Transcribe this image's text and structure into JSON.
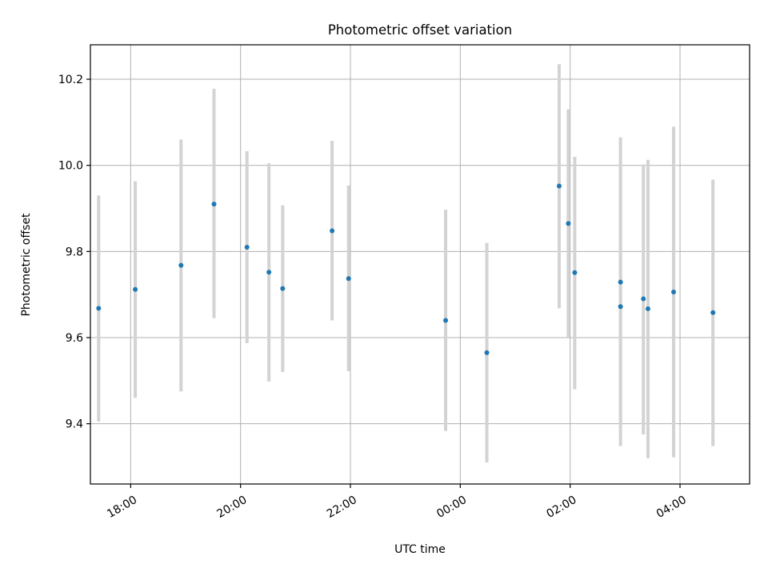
{
  "chart_data": {
    "type": "scatter",
    "title": "Photometric offset variation",
    "xlabel": "UTC time",
    "ylabel": "Photometric offset",
    "x_axis": {
      "kind": "time",
      "range": [
        "17:16",
        "05:16"
      ],
      "ticks": [
        "18:00",
        "20:00",
        "22:00",
        "00:00",
        "02:00",
        "04:00"
      ]
    },
    "y_axis": {
      "range": [
        9.26,
        10.28
      ],
      "ticks": [
        9.4,
        9.6,
        9.8,
        10.0,
        10.2
      ],
      "tick_labels": [
        "9.4",
        "9.6",
        "9.8",
        "10.0",
        "10.2"
      ]
    },
    "grid": true,
    "points": [
      {
        "time": "17:25",
        "y": 9.668,
        "lo": 9.405,
        "hi": 9.93
      },
      {
        "time": "18:05",
        "y": 9.712,
        "lo": 9.46,
        "hi": 9.963
      },
      {
        "time": "18:55",
        "y": 9.768,
        "lo": 9.475,
        "hi": 10.06
      },
      {
        "time": "19:31",
        "y": 9.91,
        "lo": 9.645,
        "hi": 10.178
      },
      {
        "time": "20:07",
        "y": 9.81,
        "lo": 9.587,
        "hi": 10.033
      },
      {
        "time": "20:31",
        "y": 9.752,
        "lo": 9.498,
        "hi": 10.005
      },
      {
        "time": "20:46",
        "y": 9.714,
        "lo": 9.52,
        "hi": 9.907
      },
      {
        "time": "21:40",
        "y": 9.848,
        "lo": 9.64,
        "hi": 10.057
      },
      {
        "time": "21:58",
        "y": 9.737,
        "lo": 9.522,
        "hi": 9.953
      },
      {
        "time": "23:44",
        "y": 9.64,
        "lo": 9.383,
        "hi": 9.897
      },
      {
        "time": "00:29",
        "y": 9.565,
        "lo": 9.31,
        "hi": 9.82
      },
      {
        "time": "01:48",
        "y": 9.952,
        "lo": 9.668,
        "hi": 10.235
      },
      {
        "time": "01:58",
        "y": 9.865,
        "lo": 9.6,
        "hi": 10.13
      },
      {
        "time": "02:05",
        "y": 9.751,
        "lo": 9.48,
        "hi": 10.02
      },
      {
        "time": "02:55",
        "y": 9.729,
        "lo": 9.397,
        "hi": 9.995
      },
      {
        "time": "02:55",
        "y": 9.672,
        "lo": 9.348,
        "hi": 10.065
      },
      {
        "time": "03:20",
        "y": 9.69,
        "lo": 9.375,
        "hi": 10.002
      },
      {
        "time": "03:25",
        "y": 9.667,
        "lo": 9.32,
        "hi": 10.013
      },
      {
        "time": "03:53",
        "y": 9.706,
        "lo": 9.322,
        "hi": 10.09
      },
      {
        "time": "04:36",
        "y": 9.658,
        "lo": 9.348,
        "hi": 9.967
      }
    ],
    "colors": {
      "marker": "#1f77b4",
      "errorbar": "#d3d3d3",
      "grid": "#b0b0b0"
    }
  }
}
